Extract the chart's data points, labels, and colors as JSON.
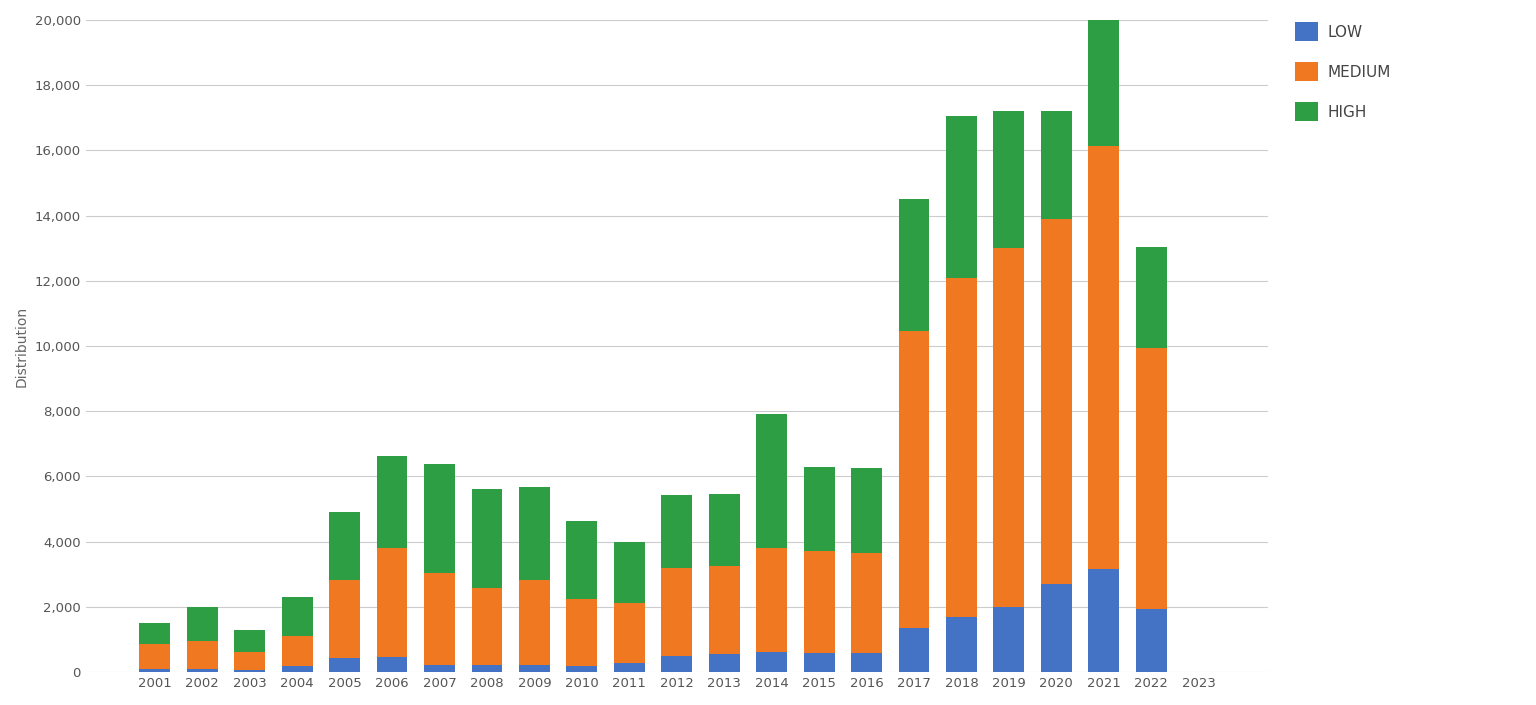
{
  "years": [
    2001,
    2002,
    2003,
    2004,
    2005,
    2006,
    2007,
    2008,
    2009,
    2010,
    2011,
    2012,
    2013,
    2014,
    2015,
    2016,
    2017,
    2018,
    2019,
    2020,
    2021,
    2022,
    2023
  ],
  "low": [
    100,
    100,
    80,
    200,
    420,
    470,
    230,
    230,
    230,
    200,
    280,
    480,
    550,
    620,
    600,
    600,
    1350,
    1700,
    2000,
    2700,
    3150,
    1950,
    0
  ],
  "medium": [
    750,
    850,
    550,
    900,
    2400,
    3350,
    2800,
    2350,
    2600,
    2050,
    1850,
    2700,
    2700,
    3200,
    3100,
    3050,
    9100,
    10400,
    11000,
    11200,
    13000,
    8000,
    0
  ],
  "high": [
    650,
    1050,
    650,
    1200,
    2100,
    2800,
    3350,
    3050,
    2850,
    2400,
    1850,
    2250,
    2200,
    4100,
    2600,
    2600,
    4050,
    4950,
    4200,
    3300,
    3900,
    3100,
    0
  ],
  "colors": {
    "low": "#4472c4",
    "medium": "#f07820",
    "high": "#2e9e44"
  },
  "ylabel": "Distribution",
  "ylim": [
    0,
    20000
  ],
  "yticks": [
    0,
    2000,
    4000,
    6000,
    8000,
    10000,
    12000,
    14000,
    16000,
    18000,
    20000
  ],
  "legend_labels": [
    "LOW",
    "MEDIUM",
    "HIGH"
  ],
  "background_color": "#ffffff",
  "grid_color": "#cccccc",
  "bar_width": 0.65
}
